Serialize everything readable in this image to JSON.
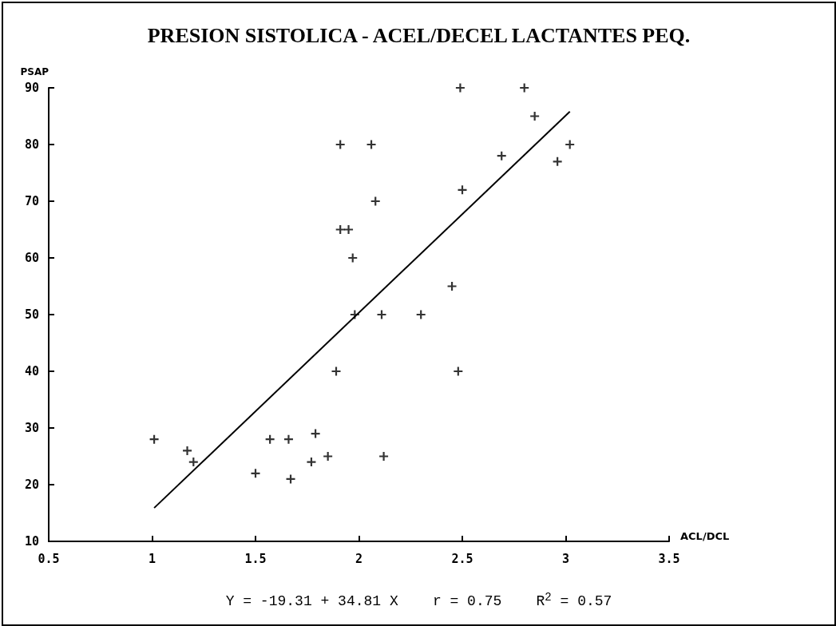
{
  "chart_data": {
    "type": "scatter",
    "title": "PRESION SISTOLICA - ACEL/DECEL LACTANTES PEQ.",
    "xlabel": "ACL/DCL",
    "ylabel": "PSAP",
    "annotations": [
      "Y = -19.31 + 34.81 X    r = 0.75    R$^{2}$ = 0.57"
    ],
    "xlim": [
      0.5,
      3.5
    ],
    "xticks": [
      0.5,
      1,
      1.5,
      2,
      2.5,
      3,
      3.5
    ],
    "ylim": [
      10,
      90
    ],
    "yticks": [
      10,
      20,
      30,
      40,
      50,
      60,
      70,
      80,
      90
    ],
    "grid": false,
    "marker": "cross",
    "series": [
      {
        "color": "#000000",
        "x": [
          1.01,
          1.17,
          1.2,
          1.5,
          1.57,
          1.66,
          1.67,
          1.79,
          1.77,
          1.85,
          1.89,
          2.12,
          1.91,
          2.06,
          2.08,
          1.91,
          1.95,
          1.97,
          1.98,
          2.11,
          2.3,
          2.49,
          2.8,
          2.85,
          3.02,
          2.69,
          2.96,
          2.5,
          2.45,
          2.48
        ],
        "values": [
          28,
          26,
          24,
          22,
          28,
          28,
          21,
          29,
          24,
          25,
          40,
          25,
          80,
          80,
          70,
          65,
          65,
          60,
          50,
          50,
          50,
          90,
          90,
          85,
          80,
          78,
          77,
          72,
          55,
          40
        ]
      },
      {
        "type": "line",
        "color": "#000000",
        "line_style": "solid",
        "marker": "none",
        "x": [
          1.01,
          3.02
        ],
        "values": [
          15.9,
          85.8
        ]
      }
    ]
  }
}
